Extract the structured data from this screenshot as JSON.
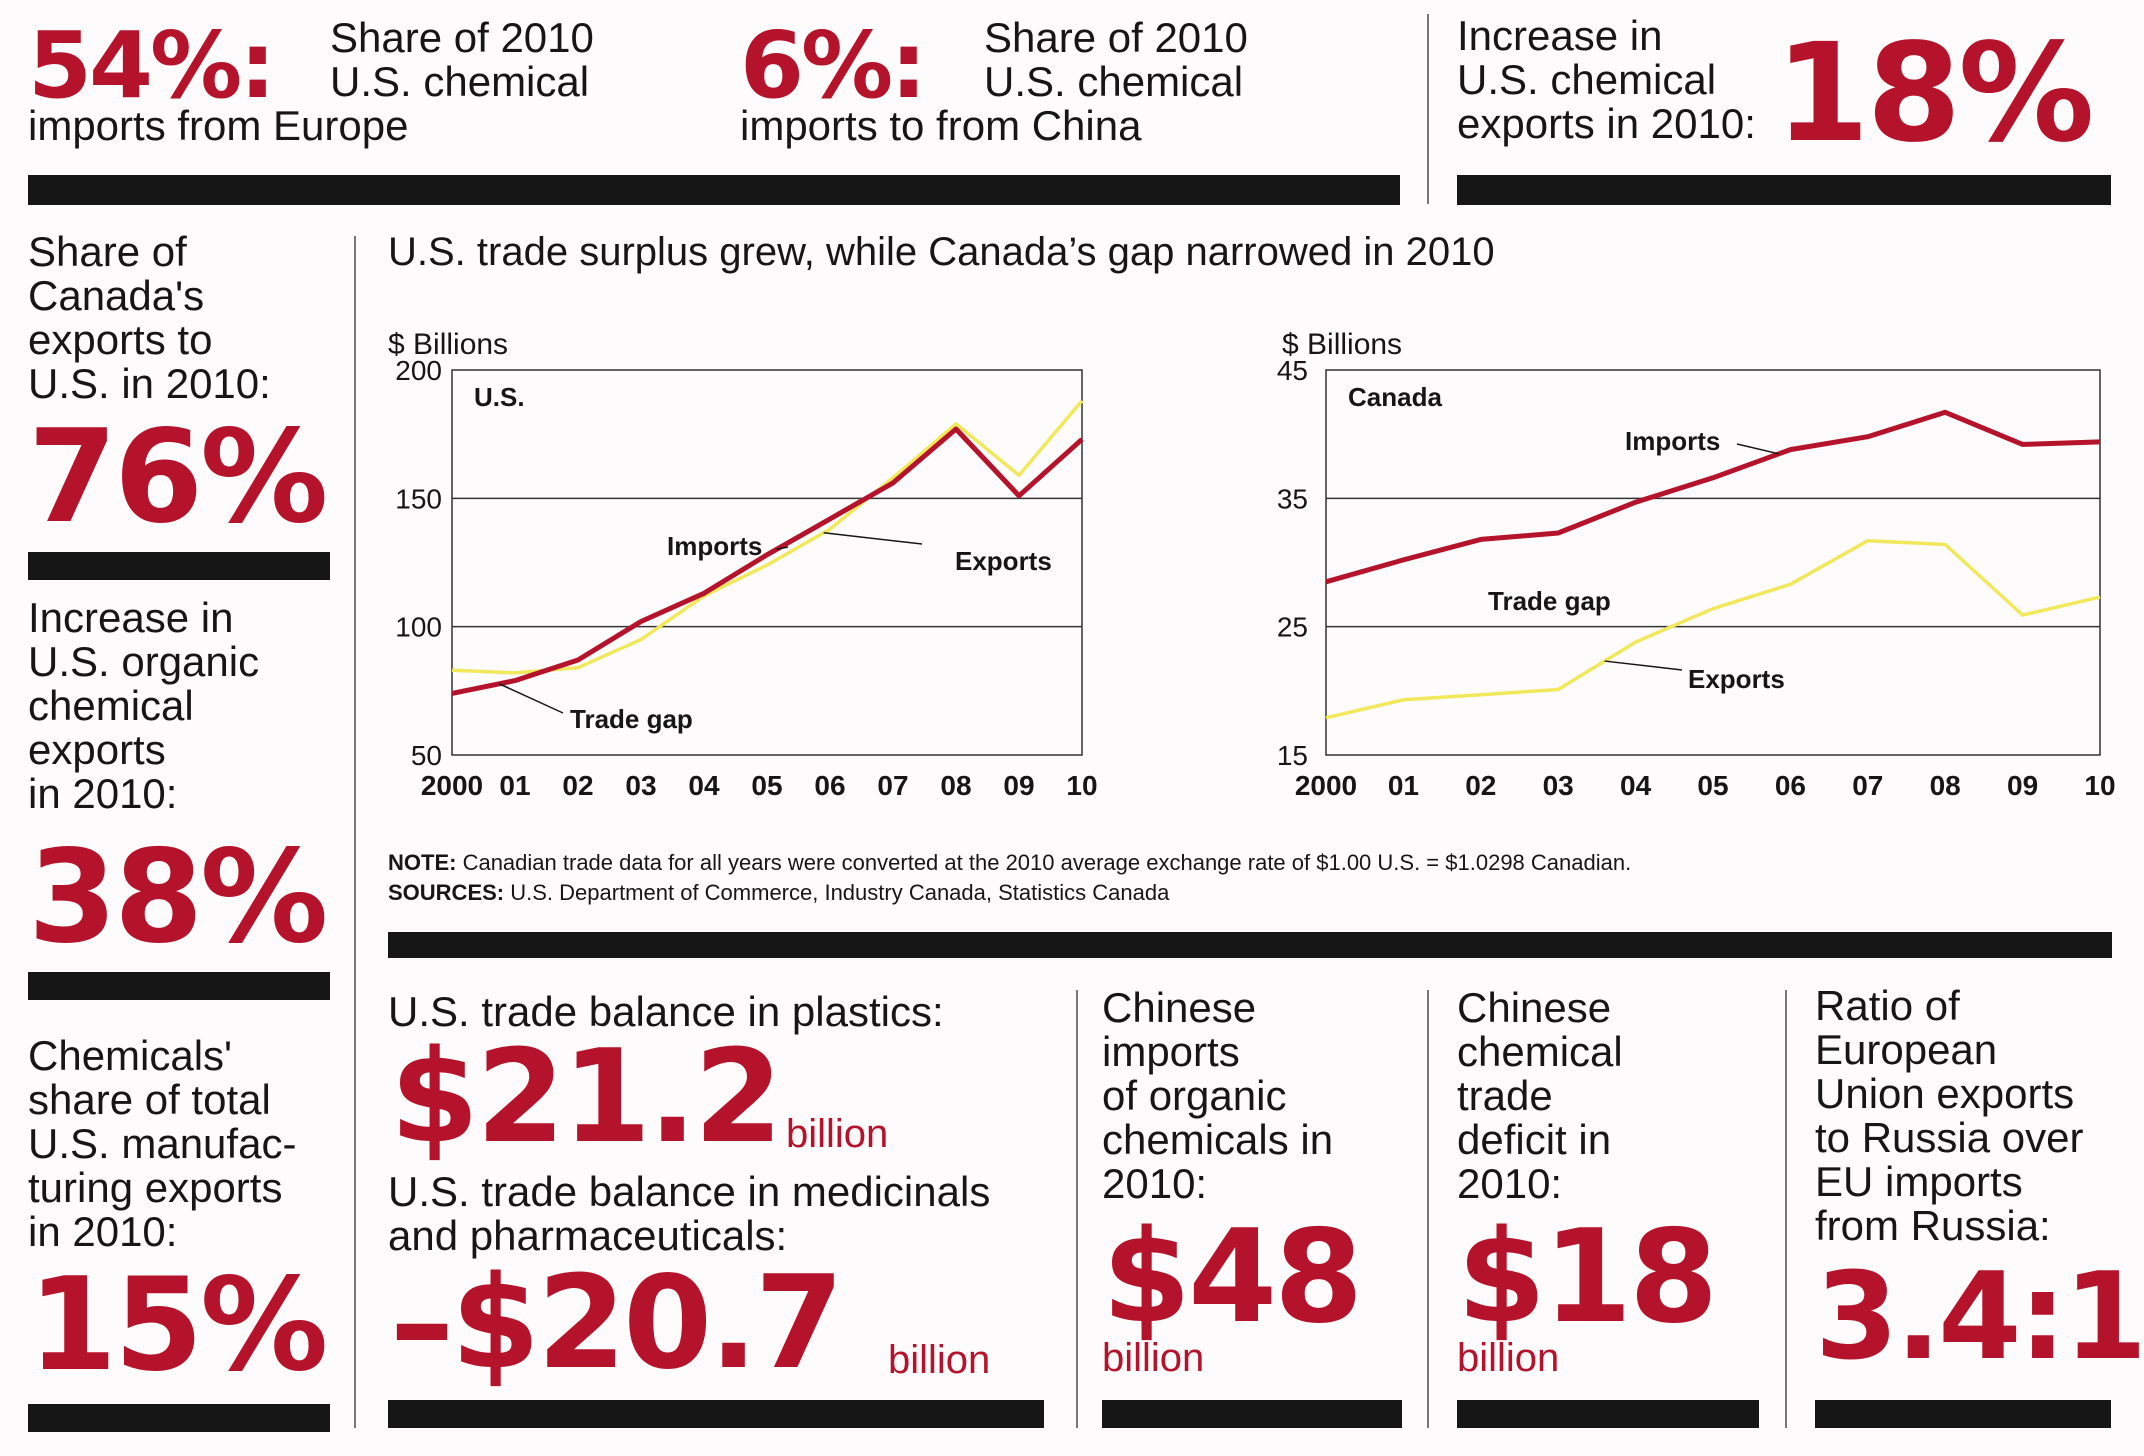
{
  "top": {
    "europe": {
      "value": "54%:",
      "label1": "Share of 2010",
      "label2": "U.S. chemical",
      "label3": "imports from Europe"
    },
    "china": {
      "value": "6%:",
      "label1": "Share of 2010",
      "label2": "U.S. chemical",
      "label3": "imports to from China"
    },
    "exports": {
      "label1": "Increase in",
      "label2": "U.S. chemical",
      "label3": "exports in 2010:",
      "value": "18%"
    }
  },
  "left": {
    "canada_share": {
      "lines": [
        "Share of",
        "Canada's",
        "exports to",
        "U.S. in 2010:"
      ],
      "value": "76%"
    },
    "organic": {
      "lines": [
        "Increase in",
        "U.S. organic",
        "chemical",
        "exports",
        "in 2010:"
      ],
      "value": "38%"
    },
    "manufacturing": {
      "lines": [
        "Chemicals'",
        "share of total",
        "U.S. manufac-",
        "turing exports",
        "in 2010:"
      ],
      "value": "15%"
    }
  },
  "chart_section": {
    "title": "U.S. trade surplus grew, while Canada’s gap narrowed in 2010",
    "note_label": "NOTE:",
    "note_text": "Canadian trade data for all years were converted at the 2010 average exchange rate of $1.00 U.S. = $1.0298 Canadian.",
    "sources_label": "SOURCES:",
    "sources_text": "U.S. Department of Commerce, Industry Canada, Statistics Canada"
  },
  "chart_data": [
    {
      "type": "line",
      "panel_label": "U.S.",
      "ylabel": "$ Billions",
      "ylim": [
        50,
        200
      ],
      "yticks": [
        50,
        100,
        150,
        200
      ],
      "x": [
        "2000",
        "01",
        "02",
        "03",
        "04",
        "05",
        "06",
        "07",
        "08",
        "09",
        "10"
      ],
      "series": [
        {
          "name": "Imports",
          "color": "#b5132b",
          "values": [
            74,
            79,
            87,
            102,
            113,
            128,
            142,
            156,
            177,
            151,
            173
          ]
        },
        {
          "name": "Exports",
          "color": "#f2e85c",
          "values": [
            83,
            82,
            84,
            95,
            112,
            124,
            138,
            158,
            179,
            159,
            188
          ]
        }
      ],
      "annotations": [
        "Imports",
        "Exports",
        "Trade gap"
      ],
      "grid": "horizontal"
    },
    {
      "type": "line",
      "panel_label": "Canada",
      "ylabel": "$ Billions",
      "ylim": [
        15,
        45
      ],
      "yticks": [
        15,
        25,
        35,
        45
      ],
      "x": [
        "2000",
        "01",
        "02",
        "03",
        "04",
        "05",
        "06",
        "07",
        "08",
        "09",
        "10"
      ],
      "series": [
        {
          "name": "Imports",
          "color": "#b5132b",
          "values": [
            28.5,
            30.2,
            31.8,
            32.3,
            34.7,
            36.6,
            38.8,
            39.8,
            41.7,
            39.2,
            39.4
          ]
        },
        {
          "name": "Exports",
          "color": "#f2e85c",
          "values": [
            17.9,
            19.3,
            19.7,
            20.1,
            23.8,
            26.4,
            28.3,
            31.7,
            31.4,
            25.9,
            27.3
          ]
        }
      ],
      "annotations": [
        "Imports",
        "Exports",
        "Trade gap"
      ],
      "grid": "horizontal"
    }
  ],
  "bottom": {
    "plastics": {
      "label": "U.S. trade balance in plastics:",
      "value": "$21.2",
      "unit": "billion"
    },
    "medicinals": {
      "label1": "U.S. trade balance in medicinals",
      "label2": "and pharmaceuticals:",
      "value": "–$20.7",
      "unit": "billion"
    },
    "chinese_imports": {
      "lines": [
        "Chinese",
        "imports",
        "of organic",
        "chemicals in",
        "2010:"
      ],
      "value": "$48",
      "unit": "billion"
    },
    "chinese_deficit": {
      "lines": [
        "Chinese",
        "chemical",
        "trade",
        "deficit in",
        "2010:"
      ],
      "value": "$18",
      "unit": "billion"
    },
    "eu_ratio": {
      "lines": [
        "Ratio of",
        "European",
        "Union exports",
        "to Russia over",
        "EU imports",
        "from Russia:"
      ],
      "value": "3.4:1"
    }
  }
}
